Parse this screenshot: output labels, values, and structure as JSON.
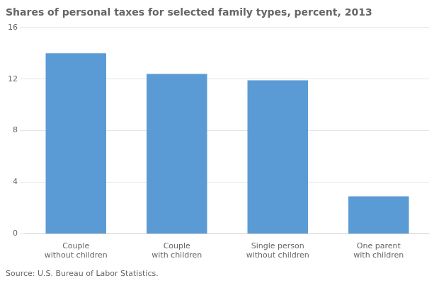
{
  "chart_data": {
    "type": "bar",
    "title": "Shares of personal taxes for selected family types, percent, 2013",
    "categories": [
      "Couple\nwithout children",
      "Couple\nwith children",
      "Single person\nwithout children",
      "One parent\nwith children"
    ],
    "values": [
      14.0,
      12.4,
      11.9,
      2.9
    ],
    "color": "#5B9BD5",
    "ylim": [
      0,
      16
    ],
    "yticks": [
      0,
      4,
      8,
      12,
      16
    ],
    "grid": true,
    "source": "Source: U.S. Bureau of Labor Statistics."
  }
}
